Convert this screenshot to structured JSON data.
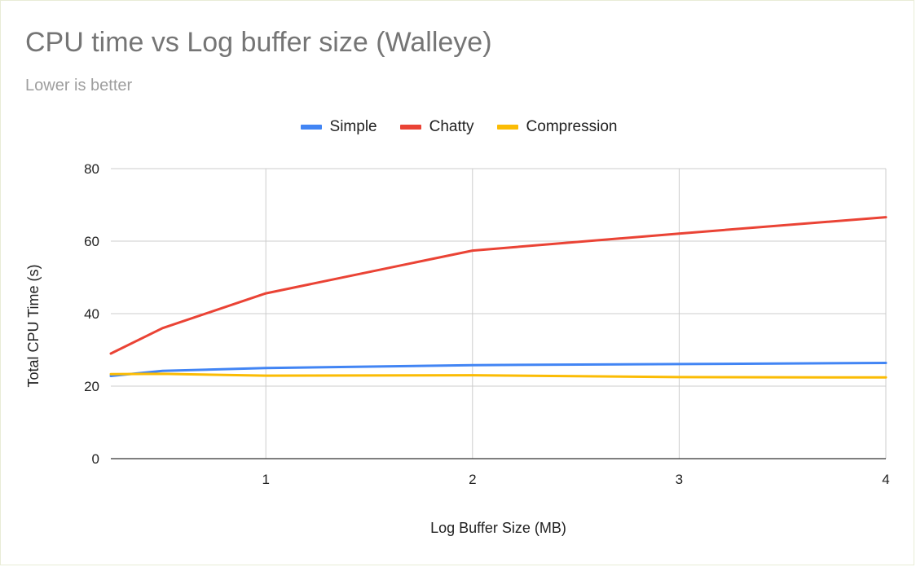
{
  "chart_data": {
    "type": "line",
    "title": "CPU time vs Log buffer size (Walleye)",
    "subtitle": "Lower is better",
    "xlabel": "Log Buffer Size (MB)",
    "ylabel": "Total CPU Time (s)",
    "xlim": [
      0.25,
      4
    ],
    "ylim": [
      0,
      80
    ],
    "x_ticks": [
      "1",
      "2",
      "3",
      "4"
    ],
    "y_ticks": [
      "0",
      "20",
      "40",
      "60",
      "80"
    ],
    "grid": true,
    "legend_position": "top-center",
    "series": [
      {
        "name": "Simple",
        "color": "#4285f4",
        "x": [
          0.25,
          0.5,
          1,
          2,
          3,
          4
        ],
        "y": [
          22.8,
          24.2,
          25.0,
          25.8,
          26.1,
          26.4
        ]
      },
      {
        "name": "Chatty",
        "color": "#ea4335",
        "x": [
          0.25,
          0.5,
          1,
          2,
          3,
          4
        ],
        "y": [
          29.0,
          36.0,
          45.6,
          57.4,
          62.1,
          66.6
        ]
      },
      {
        "name": "Compression",
        "color": "#fbbc04",
        "x": [
          0.25,
          0.5,
          1,
          2,
          3,
          4
        ],
        "y": [
          23.3,
          23.4,
          22.9,
          23.0,
          22.5,
          22.4
        ]
      }
    ]
  }
}
